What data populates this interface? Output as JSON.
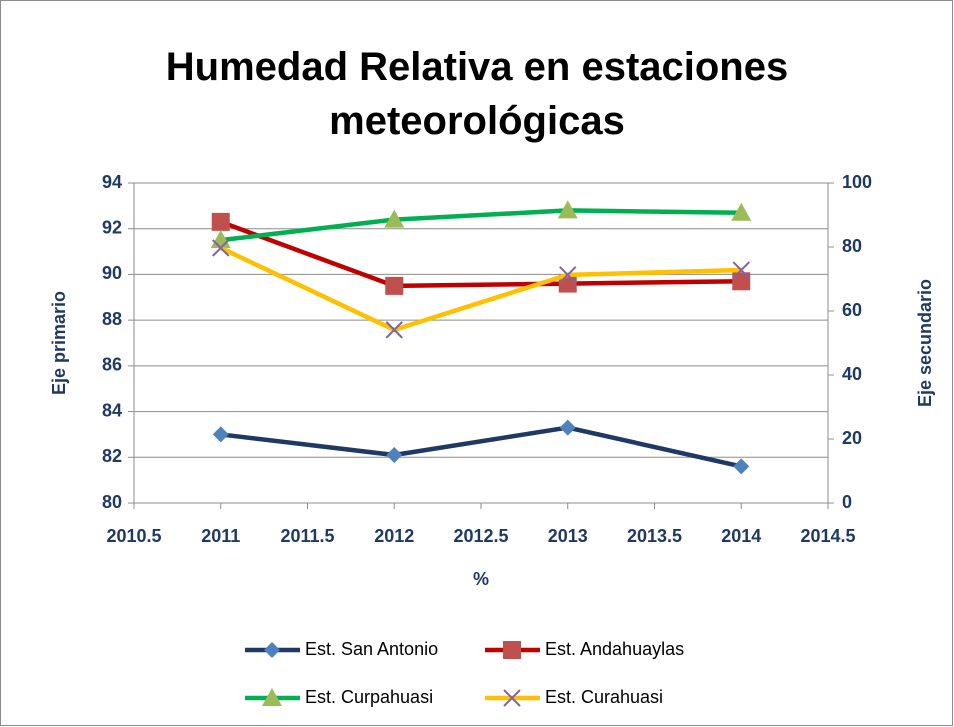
{
  "chart_data": {
    "type": "line",
    "title": "Humedad Relativa en estaciones meteorológicas",
    "x_label": "%",
    "y_label": "Eje primario",
    "y2_label": "Eje secundario",
    "xlim": [
      2010.5,
      2014.5
    ],
    "xticks": [
      2010.5,
      2011,
      2011.5,
      2012,
      2012.5,
      2013,
      2013.5,
      2014,
      2014.5
    ],
    "ylim": [
      80,
      94
    ],
    "yticks": [
      80,
      82,
      84,
      86,
      88,
      90,
      92,
      94
    ],
    "y2lim": [
      0,
      100
    ],
    "y2ticks": [
      0,
      20,
      40,
      60,
      80,
      100
    ],
    "grid": true,
    "series": [
      {
        "name": "Est. San Antonio",
        "color": "#1f3864",
        "marker": "diamond",
        "marker_color": "#4f81bd",
        "x": [
          2011,
          2012,
          2013,
          2014
        ],
        "values": [
          83.0,
          82.1,
          83.3,
          81.6
        ]
      },
      {
        "name": "Est. Andahuaylas",
        "color": "#c00000",
        "marker": "square",
        "marker_color": "#c0504d",
        "x": [
          2011,
          2012,
          2013,
          2014
        ],
        "values": [
          92.3,
          89.5,
          89.6,
          89.7
        ]
      },
      {
        "name": "Est. Curpahuasi",
        "color": "#00b050",
        "marker": "triangle",
        "marker_color": "#9bbb59",
        "x": [
          2011,
          2012,
          2013,
          2014
        ],
        "values": [
          91.5,
          92.4,
          92.8,
          92.7
        ]
      },
      {
        "name": "Est. Curahuasi",
        "color": "#ffc000",
        "marker": "x",
        "marker_color": "#8064a2",
        "axis": "y2",
        "x": [
          2011,
          2012,
          2013,
          2014
        ],
        "values": [
          79.7,
          54.1,
          71.3,
          72.8
        ]
      }
    ]
  }
}
